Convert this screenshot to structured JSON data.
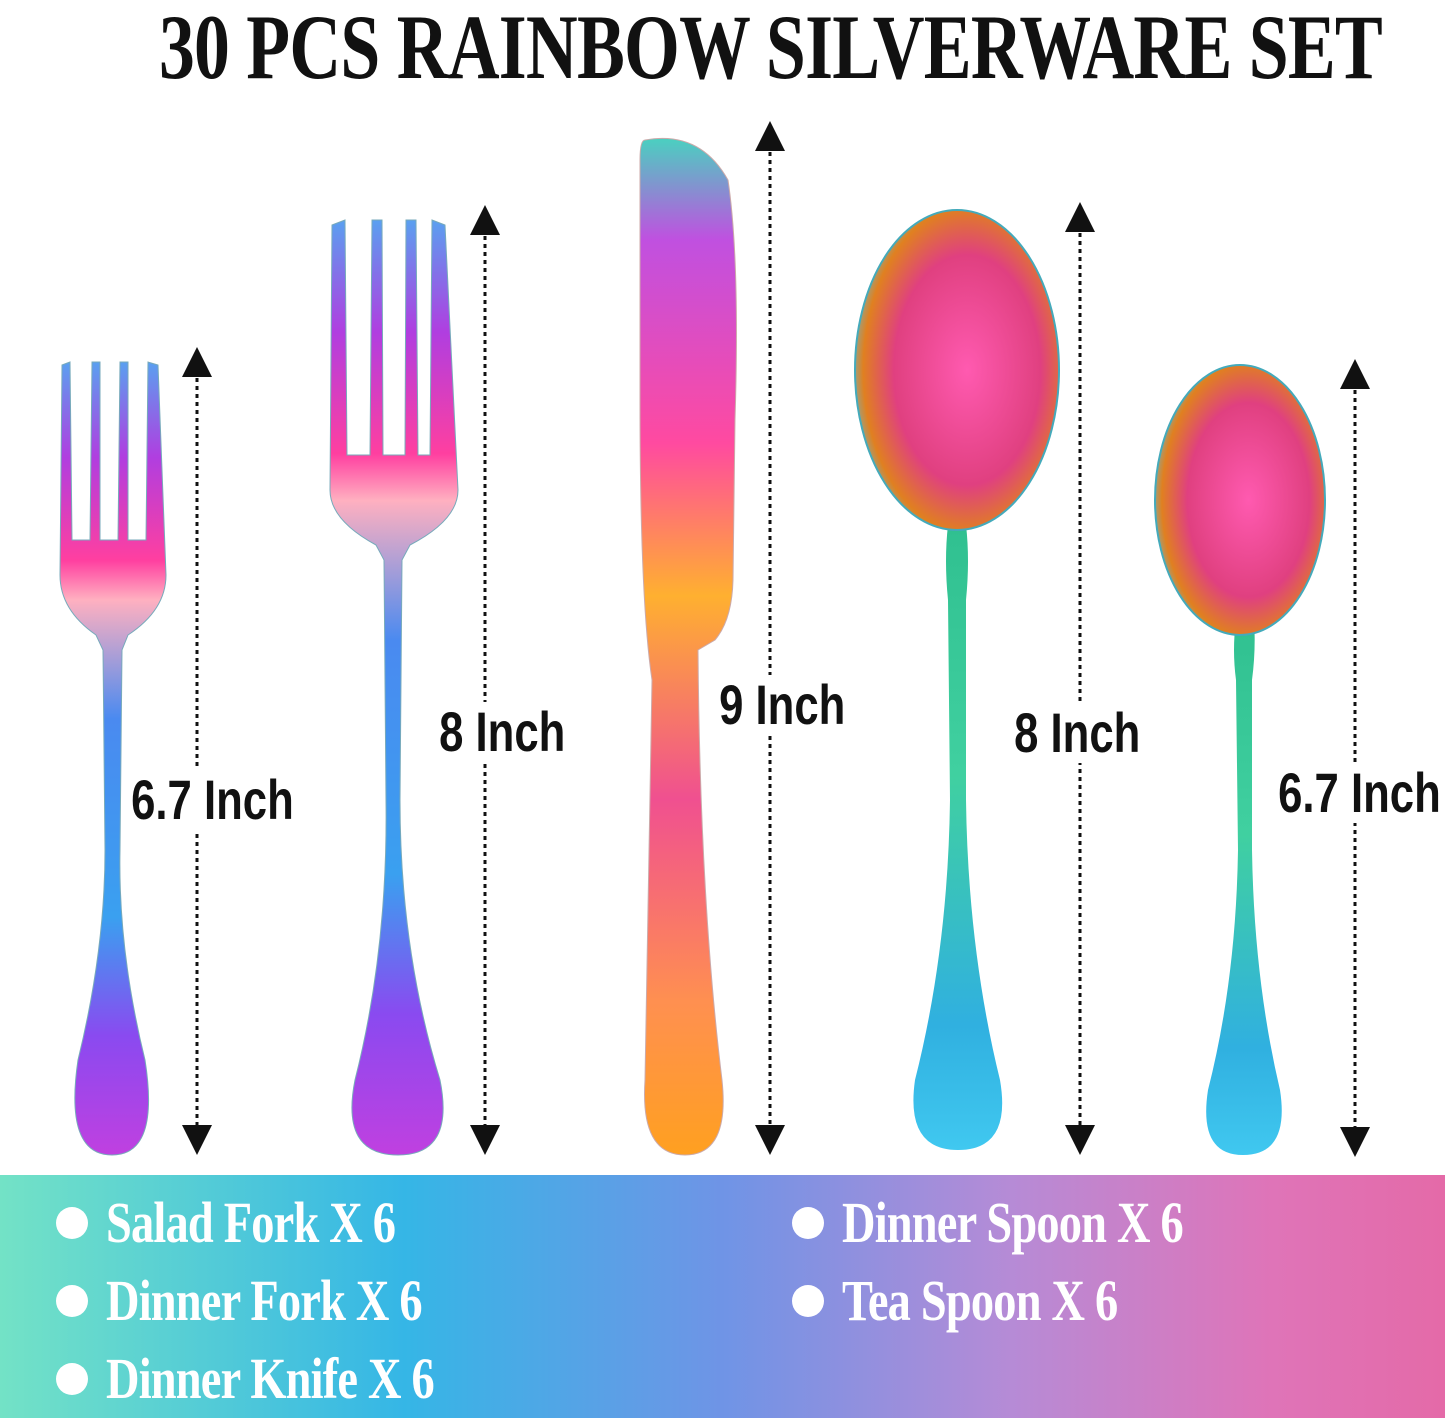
{
  "title": "30 PCS RAINBOW SILVERWARE SET",
  "items": [
    {
      "name": "salad-fork",
      "size": "6.7 Inch"
    },
    {
      "name": "dinner-fork",
      "size": "8 Inch"
    },
    {
      "name": "dinner-knife",
      "size": "9 Inch"
    },
    {
      "name": "dinner-spoon",
      "size": "8 Inch"
    },
    {
      "name": "tea-spoon",
      "size": "6.7 Inch"
    }
  ],
  "contents": [
    "Salad Fork X 6",
    "Dinner Fork X 6",
    "Dinner Knife X 6",
    "Dinner Spoon X 6",
    "Tea Spoon X 6"
  ],
  "colors": {
    "band_left": "#73e2c6",
    "band_mid": "#6f94e6",
    "band_right": "#e46aa8",
    "text": "#111111"
  }
}
